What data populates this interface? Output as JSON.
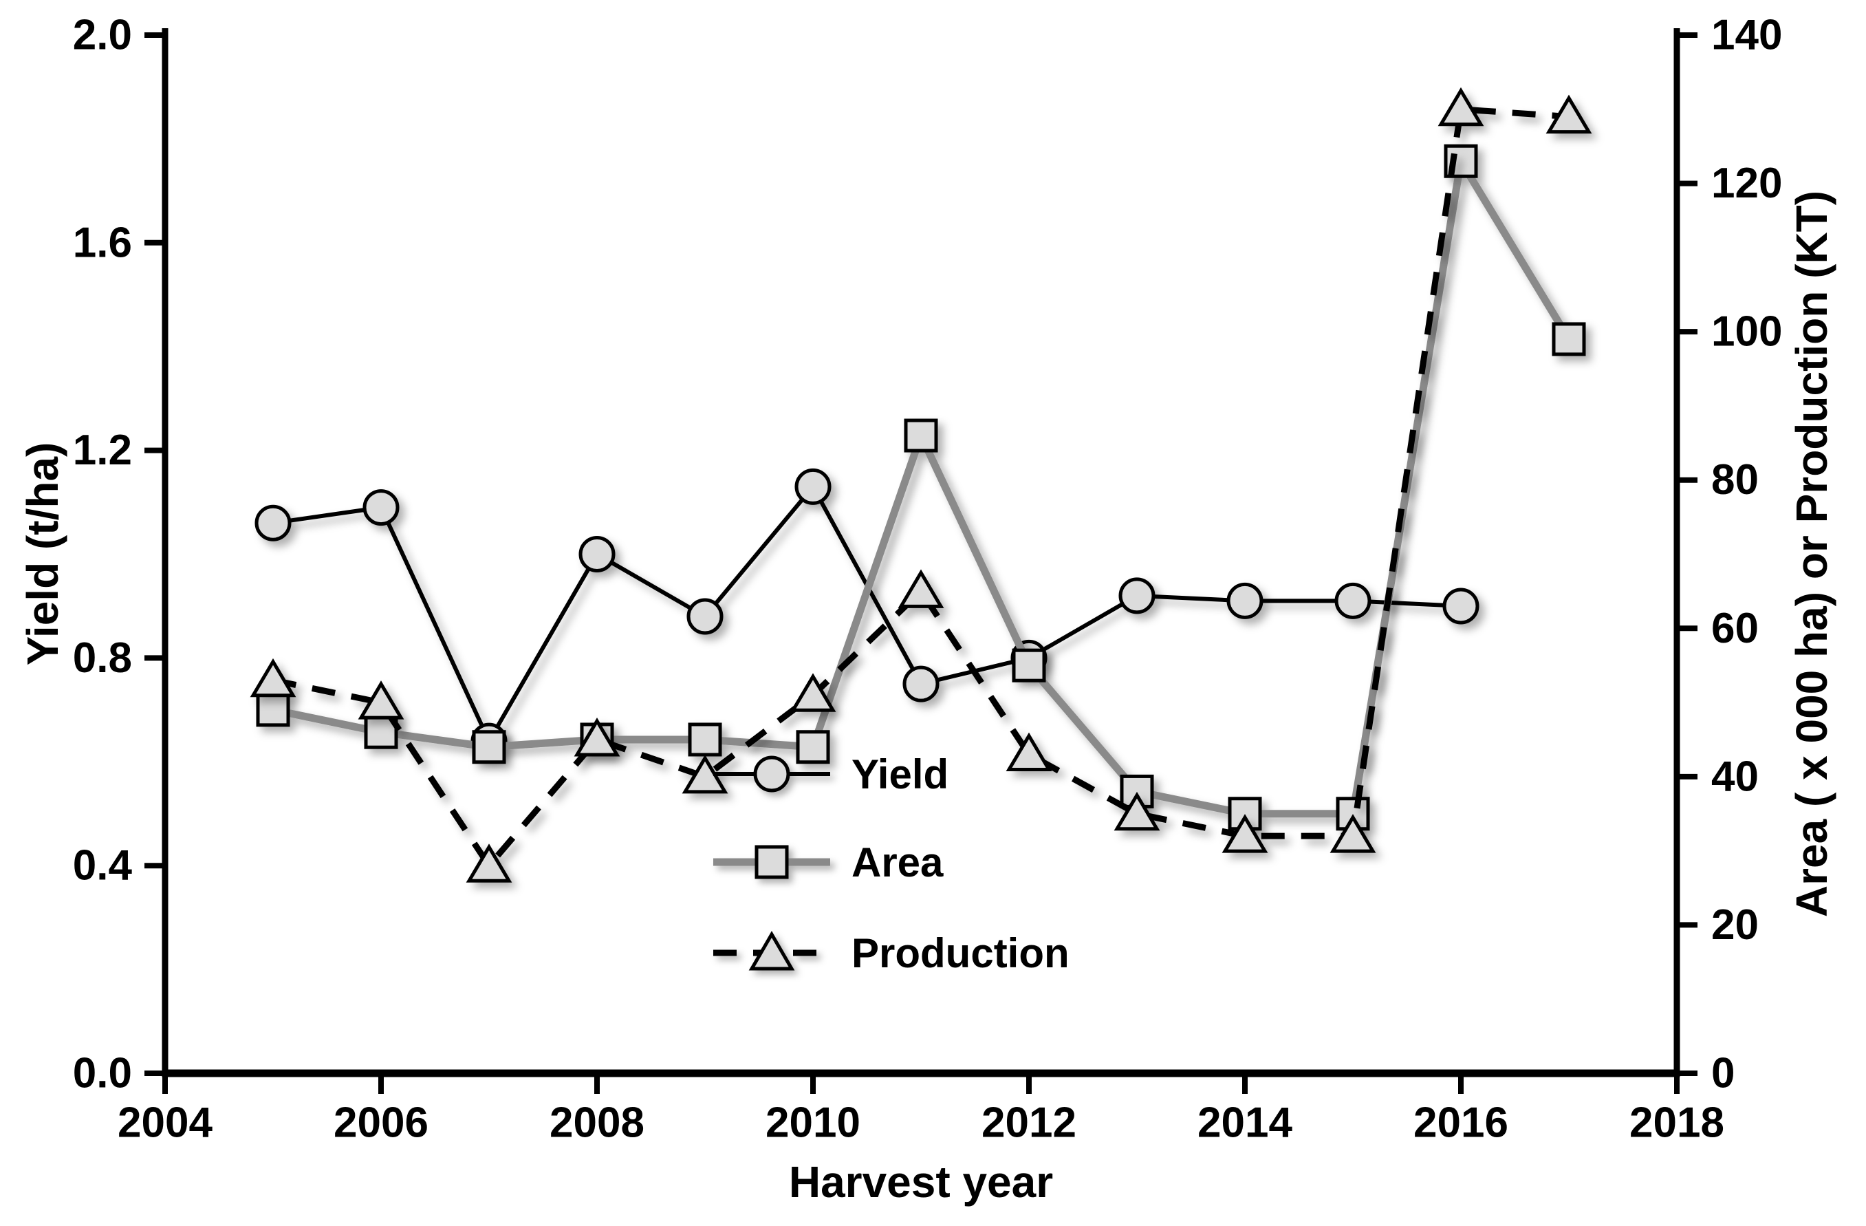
{
  "figure": {
    "x_axis_title": "Harvest year",
    "left_axis_title": "Yield (t/ha)",
    "right_axis_title": "Area ( x 000 ha) or Production (KT)"
  },
  "legend": {
    "items": [
      {
        "label": "Yield"
      },
      {
        "label": "Area"
      },
      {
        "label": "Production"
      }
    ]
  },
  "colors": {
    "black": "#000000",
    "gray_series": "#8a8a8a",
    "marker_fill": "#dcdcdc",
    "background": "#ffffff"
  },
  "chart_data": {
    "type": "line",
    "title": "",
    "xlabel": "Harvest year",
    "x": [
      2005,
      2006,
      2007,
      2008,
      2009,
      2010,
      2011,
      2012,
      2013,
      2014,
      2015,
      2016,
      2017
    ],
    "series": [
      {
        "name": "Yield",
        "axis": "left",
        "units": "t/ha",
        "marker": "circle",
        "line": "solid-black",
        "values": [
          1.06,
          1.09,
          0.64,
          1.0,
          0.88,
          1.13,
          0.75,
          0.8,
          0.92,
          0.91,
          0.91,
          0.9,
          null
        ]
      },
      {
        "name": "Area",
        "axis": "right",
        "units": "x 000 ha",
        "marker": "square",
        "line": "solid-gray",
        "values": [
          49,
          46,
          44,
          45,
          45,
          44,
          86,
          55,
          38,
          35,
          35,
          123,
          99
        ]
      },
      {
        "name": "Production",
        "axis": "right",
        "units": "KT",
        "marker": "triangle",
        "line": "dashed-black",
        "values": [
          53,
          50,
          28,
          45,
          40,
          51,
          65,
          43,
          35,
          32,
          32,
          130,
          129
        ]
      }
    ],
    "axes": {
      "x": {
        "label": "Harvest year",
        "min": 2004,
        "max": 2018,
        "tick_labels": [
          "2004",
          "2006",
          "2008",
          "2010",
          "2012",
          "2014",
          "2016",
          "2018"
        ]
      },
      "y_left": {
        "label": "Yield (t/ha)",
        "min": 0.0,
        "max": 2.0,
        "tick_labels": [
          "0.0",
          "0.4",
          "0.8",
          "1.2",
          "1.6",
          "2.0"
        ]
      },
      "y_right": {
        "label": "Area ( x 000 ha) or Production (KT)",
        "min": 0,
        "max": 140,
        "tick_labels": [
          "0",
          "20",
          "40",
          "60",
          "80",
          "100",
          "120",
          "140"
        ]
      }
    },
    "grid": false,
    "legend_position": "inside-left-center"
  },
  "legend_layout": {
    "row_tops": [
      1090,
      1218,
      1350
    ]
  }
}
